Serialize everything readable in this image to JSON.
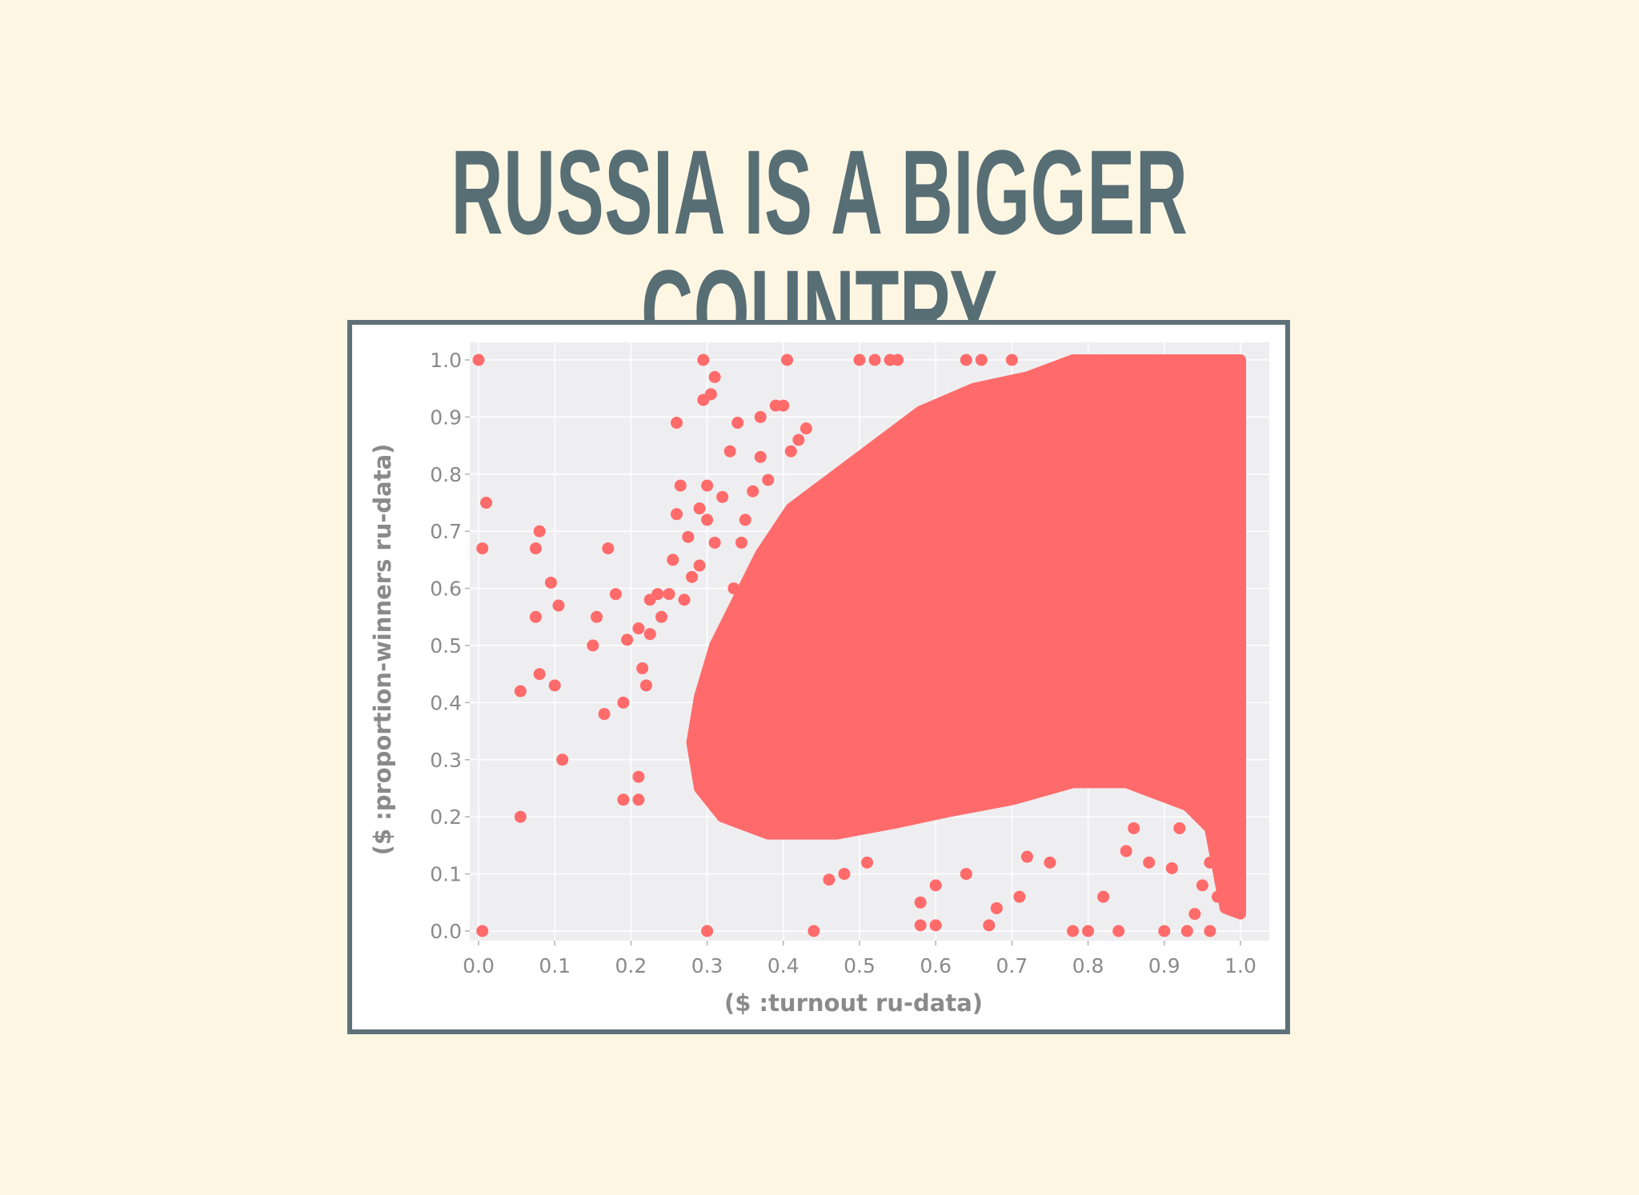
{
  "slide": {
    "title": "RUSSIA IS A BIGGER COUNTRY"
  },
  "colors": {
    "background": "#fdf6e3",
    "title": "#586e75",
    "frame": "#5f7178",
    "point": "#ff6b6b",
    "plot_bg": "#eeeef0",
    "grid": "#ffffff",
    "tick_text": "#8a8a8a"
  },
  "chart_data": {
    "type": "scatter",
    "title": "",
    "xlabel": "($ :turnout ru-data)",
    "ylabel": "($ :proportion-winners ru-data)",
    "xlim": [
      0.0,
      1.0
    ],
    "ylim": [
      0.0,
      1.0
    ],
    "xticks": [
      "0.0",
      "0.1",
      "0.2",
      "0.3",
      "0.4",
      "0.5",
      "0.6",
      "0.7",
      "0.8",
      "0.9",
      "1.0"
    ],
    "yticks": [
      "0.0",
      "0.1",
      "0.2",
      "0.3",
      "0.4",
      "0.5",
      "0.6",
      "0.7",
      "0.8",
      "0.9",
      "1.0"
    ],
    "grid": true,
    "legend": "none",
    "dense_region_outline": [
      [
        0.28,
        0.33
      ],
      [
        0.29,
        0.41
      ],
      [
        0.31,
        0.5
      ],
      [
        0.34,
        0.58
      ],
      [
        0.37,
        0.66
      ],
      [
        0.41,
        0.74
      ],
      [
        0.47,
        0.8
      ],
      [
        0.52,
        0.85
      ],
      [
        0.58,
        0.91
      ],
      [
        0.65,
        0.95
      ],
      [
        0.72,
        0.97
      ],
      [
        0.78,
        1.0
      ],
      [
        1.0,
        1.0
      ],
      [
        1.0,
        0.03
      ],
      [
        0.98,
        0.04
      ],
      [
        0.96,
        0.18
      ],
      [
        0.93,
        0.22
      ],
      [
        0.85,
        0.26
      ],
      [
        0.78,
        0.26
      ],
      [
        0.7,
        0.23
      ],
      [
        0.62,
        0.21
      ],
      [
        0.55,
        0.19
      ],
      [
        0.47,
        0.17
      ],
      [
        0.38,
        0.17
      ],
      [
        0.32,
        0.2
      ],
      [
        0.29,
        0.25
      ]
    ],
    "points": [
      {
        "x": 0.0,
        "y": 1.0
      },
      {
        "x": 0.01,
        "y": 0.75
      },
      {
        "x": 0.005,
        "y": 0.67
      },
      {
        "x": 0.005,
        "y": 0.0
      },
      {
        "x": 0.055,
        "y": 0.2
      },
      {
        "x": 0.055,
        "y": 0.42
      },
      {
        "x": 0.075,
        "y": 0.67
      },
      {
        "x": 0.08,
        "y": 0.7
      },
      {
        "x": 0.075,
        "y": 0.55
      },
      {
        "x": 0.08,
        "y": 0.45
      },
      {
        "x": 0.095,
        "y": 0.61
      },
      {
        "x": 0.1,
        "y": 0.43
      },
      {
        "x": 0.105,
        "y": 0.57
      },
      {
        "x": 0.11,
        "y": 0.3
      },
      {
        "x": 0.15,
        "y": 0.5
      },
      {
        "x": 0.155,
        "y": 0.55
      },
      {
        "x": 0.165,
        "y": 0.38
      },
      {
        "x": 0.17,
        "y": 0.67
      },
      {
        "x": 0.18,
        "y": 0.59
      },
      {
        "x": 0.19,
        "y": 0.23
      },
      {
        "x": 0.19,
        "y": 0.4
      },
      {
        "x": 0.195,
        "y": 0.51
      },
      {
        "x": 0.21,
        "y": 0.23
      },
      {
        "x": 0.21,
        "y": 0.27
      },
      {
        "x": 0.21,
        "y": 0.53
      },
      {
        "x": 0.215,
        "y": 0.46
      },
      {
        "x": 0.22,
        "y": 0.43
      },
      {
        "x": 0.225,
        "y": 0.58
      },
      {
        "x": 0.225,
        "y": 0.52
      },
      {
        "x": 0.235,
        "y": 0.59
      },
      {
        "x": 0.24,
        "y": 0.55
      },
      {
        "x": 0.25,
        "y": 0.59
      },
      {
        "x": 0.255,
        "y": 0.65
      },
      {
        "x": 0.26,
        "y": 0.89
      },
      {
        "x": 0.26,
        "y": 0.73
      },
      {
        "x": 0.265,
        "y": 0.78
      },
      {
        "x": 0.27,
        "y": 0.58
      },
      {
        "x": 0.275,
        "y": 0.69
      },
      {
        "x": 0.28,
        "y": 0.62
      },
      {
        "x": 0.29,
        "y": 0.74
      },
      {
        "x": 0.29,
        "y": 0.64
      },
      {
        "x": 0.295,
        "y": 1.0
      },
      {
        "x": 0.295,
        "y": 0.93
      },
      {
        "x": 0.3,
        "y": 0.78
      },
      {
        "x": 0.3,
        "y": 0.72
      },
      {
        "x": 0.3,
        "y": 0.0
      },
      {
        "x": 0.305,
        "y": 0.94
      },
      {
        "x": 0.31,
        "y": 0.97
      },
      {
        "x": 0.31,
        "y": 0.68
      },
      {
        "x": 0.32,
        "y": 0.76
      },
      {
        "x": 0.33,
        "y": 0.84
      },
      {
        "x": 0.335,
        "y": 0.6
      },
      {
        "x": 0.34,
        "y": 0.89
      },
      {
        "x": 0.345,
        "y": 0.68
      },
      {
        "x": 0.35,
        "y": 0.72
      },
      {
        "x": 0.36,
        "y": 0.77
      },
      {
        "x": 0.37,
        "y": 0.83
      },
      {
        "x": 0.37,
        "y": 0.9
      },
      {
        "x": 0.38,
        "y": 0.79
      },
      {
        "x": 0.39,
        "y": 0.92
      },
      {
        "x": 0.4,
        "y": 0.92
      },
      {
        "x": 0.405,
        "y": 1.0
      },
      {
        "x": 0.41,
        "y": 0.84
      },
      {
        "x": 0.42,
        "y": 0.86
      },
      {
        "x": 0.43,
        "y": 0.88
      },
      {
        "x": 0.44,
        "y": 0.0
      },
      {
        "x": 0.46,
        "y": 0.09
      },
      {
        "x": 0.48,
        "y": 0.1
      },
      {
        "x": 0.5,
        "y": 1.0
      },
      {
        "x": 0.51,
        "y": 0.12
      },
      {
        "x": 0.52,
        "y": 1.0
      },
      {
        "x": 0.54,
        "y": 1.0
      },
      {
        "x": 0.55,
        "y": 1.0
      },
      {
        "x": 0.58,
        "y": 0.05
      },
      {
        "x": 0.58,
        "y": 0.01
      },
      {
        "x": 0.6,
        "y": 0.08
      },
      {
        "x": 0.6,
        "y": 0.01
      },
      {
        "x": 0.64,
        "y": 0.1
      },
      {
        "x": 0.64,
        "y": 1.0
      },
      {
        "x": 0.66,
        "y": 1.0
      },
      {
        "x": 0.67,
        "y": 0.01
      },
      {
        "x": 0.68,
        "y": 0.04
      },
      {
        "x": 0.7,
        "y": 1.0
      },
      {
        "x": 0.71,
        "y": 0.06
      },
      {
        "x": 0.72,
        "y": 0.13
      },
      {
        "x": 0.75,
        "y": 0.12
      },
      {
        "x": 0.78,
        "y": 0.0
      },
      {
        "x": 0.8,
        "y": 0.0
      },
      {
        "x": 0.82,
        "y": 0.06
      },
      {
        "x": 0.84,
        "y": 0.0
      },
      {
        "x": 0.85,
        "y": 0.14
      },
      {
        "x": 0.86,
        "y": 0.18
      },
      {
        "x": 0.88,
        "y": 0.12
      },
      {
        "x": 0.9,
        "y": 0.0
      },
      {
        "x": 0.91,
        "y": 0.11
      },
      {
        "x": 0.92,
        "y": 0.18
      },
      {
        "x": 0.93,
        "y": 0.0
      },
      {
        "x": 0.94,
        "y": 0.03
      },
      {
        "x": 0.95,
        "y": 0.08
      },
      {
        "x": 0.96,
        "y": 0.12
      },
      {
        "x": 0.96,
        "y": 0.0
      },
      {
        "x": 0.97,
        "y": 0.06
      }
    ]
  }
}
